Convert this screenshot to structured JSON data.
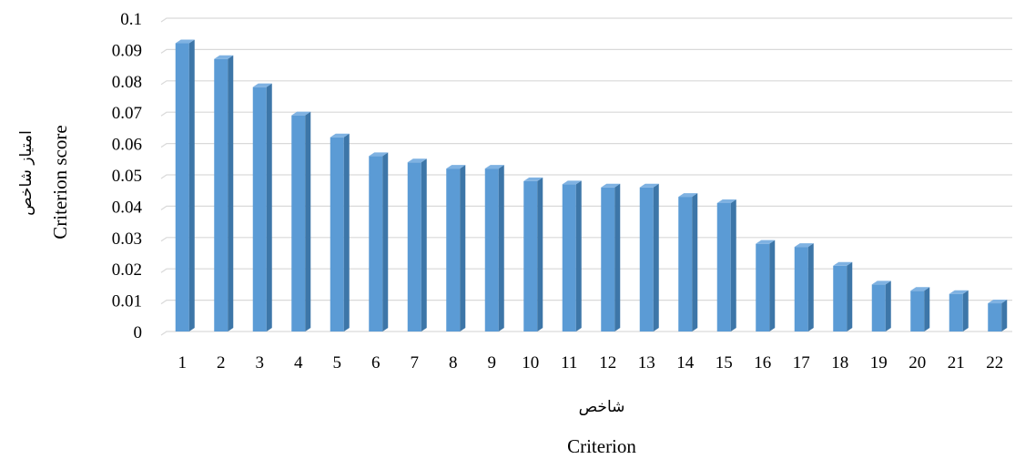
{
  "chart_data": {
    "type": "bar",
    "style": "3d-column",
    "bar_color": "#5b9bd5",
    "categories": [
      "1",
      "2",
      "3",
      "4",
      "5",
      "6",
      "7",
      "8",
      "9",
      "10",
      "11",
      "12",
      "13",
      "14",
      "15",
      "16",
      "17",
      "18",
      "19",
      "20",
      "21",
      "22"
    ],
    "values": [
      0.092,
      0.087,
      0.078,
      0.069,
      0.062,
      0.056,
      0.054,
      0.052,
      0.052,
      0.048,
      0.047,
      0.046,
      0.046,
      0.043,
      0.041,
      0.028,
      0.027,
      0.021,
      0.015,
      0.013,
      0.012,
      0.009
    ],
    "ylim": [
      0,
      0.1
    ],
    "yticks": [
      "0",
      "0.01",
      "0.02",
      "0.03",
      "0.04",
      "0.05",
      "0.06",
      "0.07",
      "0.08",
      "0.09",
      "0.1"
    ],
    "grid": true,
    "xlabel_fa": "شاخص",
    "xlabel": "Criterion",
    "ylabel_fa": "امتیاز شاخص",
    "ylabel": "Criterion score"
  }
}
